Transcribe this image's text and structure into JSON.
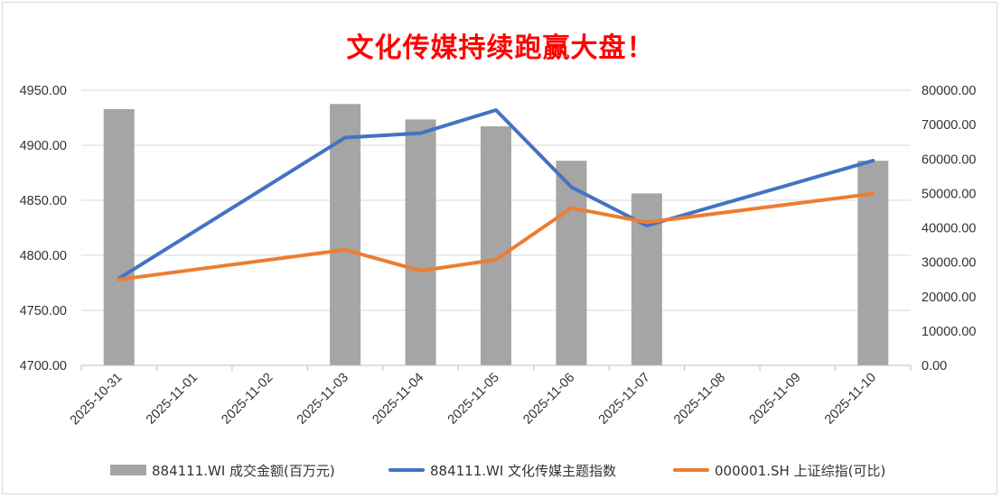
{
  "chart_data": {
    "type": "bar+line",
    "title": "文化传媒持续跑赢大盘！",
    "categories": [
      "2025-10-31",
      "2025-11-01",
      "2025-11-02",
      "2025-11-03",
      "2025-11-04",
      "2025-11-05",
      "2025-11-06",
      "2025-11-07",
      "2025-11-08",
      "2025-11-09",
      "2025-11-10"
    ],
    "y_left": {
      "min": 4700,
      "max": 4950,
      "step": 50,
      "ticks": [
        "4700.00",
        "4750.00",
        "4800.00",
        "4850.00",
        "4900.00",
        "4950.00"
      ]
    },
    "y_right": {
      "min": 0,
      "max": 80000,
      "step": 10000,
      "ticks": [
        "0.00",
        "10000.00",
        "20000.00",
        "30000.00",
        "40000.00",
        "50000.00",
        "60000.00",
        "70000.00",
        "80000.00"
      ]
    },
    "grid": true,
    "legend_position": "bottom",
    "series": [
      {
        "name": "884111.WI 成交金额(百万元)",
        "type": "bar",
        "axis": "right",
        "color": "#a5a5a5",
        "values": [
          74500,
          null,
          null,
          76000,
          71500,
          69500,
          59500,
          50000,
          null,
          null,
          59500
        ]
      },
      {
        "name": "884111.WI 文化传媒主题指数",
        "type": "line",
        "axis": "left",
        "color": "#4472c4",
        "values": [
          4779,
          null,
          null,
          4907,
          4911,
          4932,
          4862,
          4827,
          null,
          null,
          4886
        ]
      },
      {
        "name": "000001.SH 上证综指(可比)",
        "type": "line",
        "axis": "left",
        "color": "#ed7d31",
        "values": [
          4778,
          null,
          null,
          4805,
          4786,
          4796,
          4843,
          4830,
          null,
          null,
          4856
        ]
      }
    ]
  }
}
